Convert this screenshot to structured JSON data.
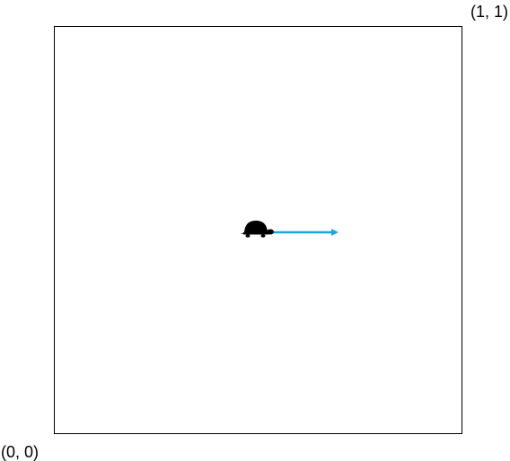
{
  "corner_labels": {
    "top_right": "(1, 1)",
    "bottom_left": "(0, 0)"
  }
}
